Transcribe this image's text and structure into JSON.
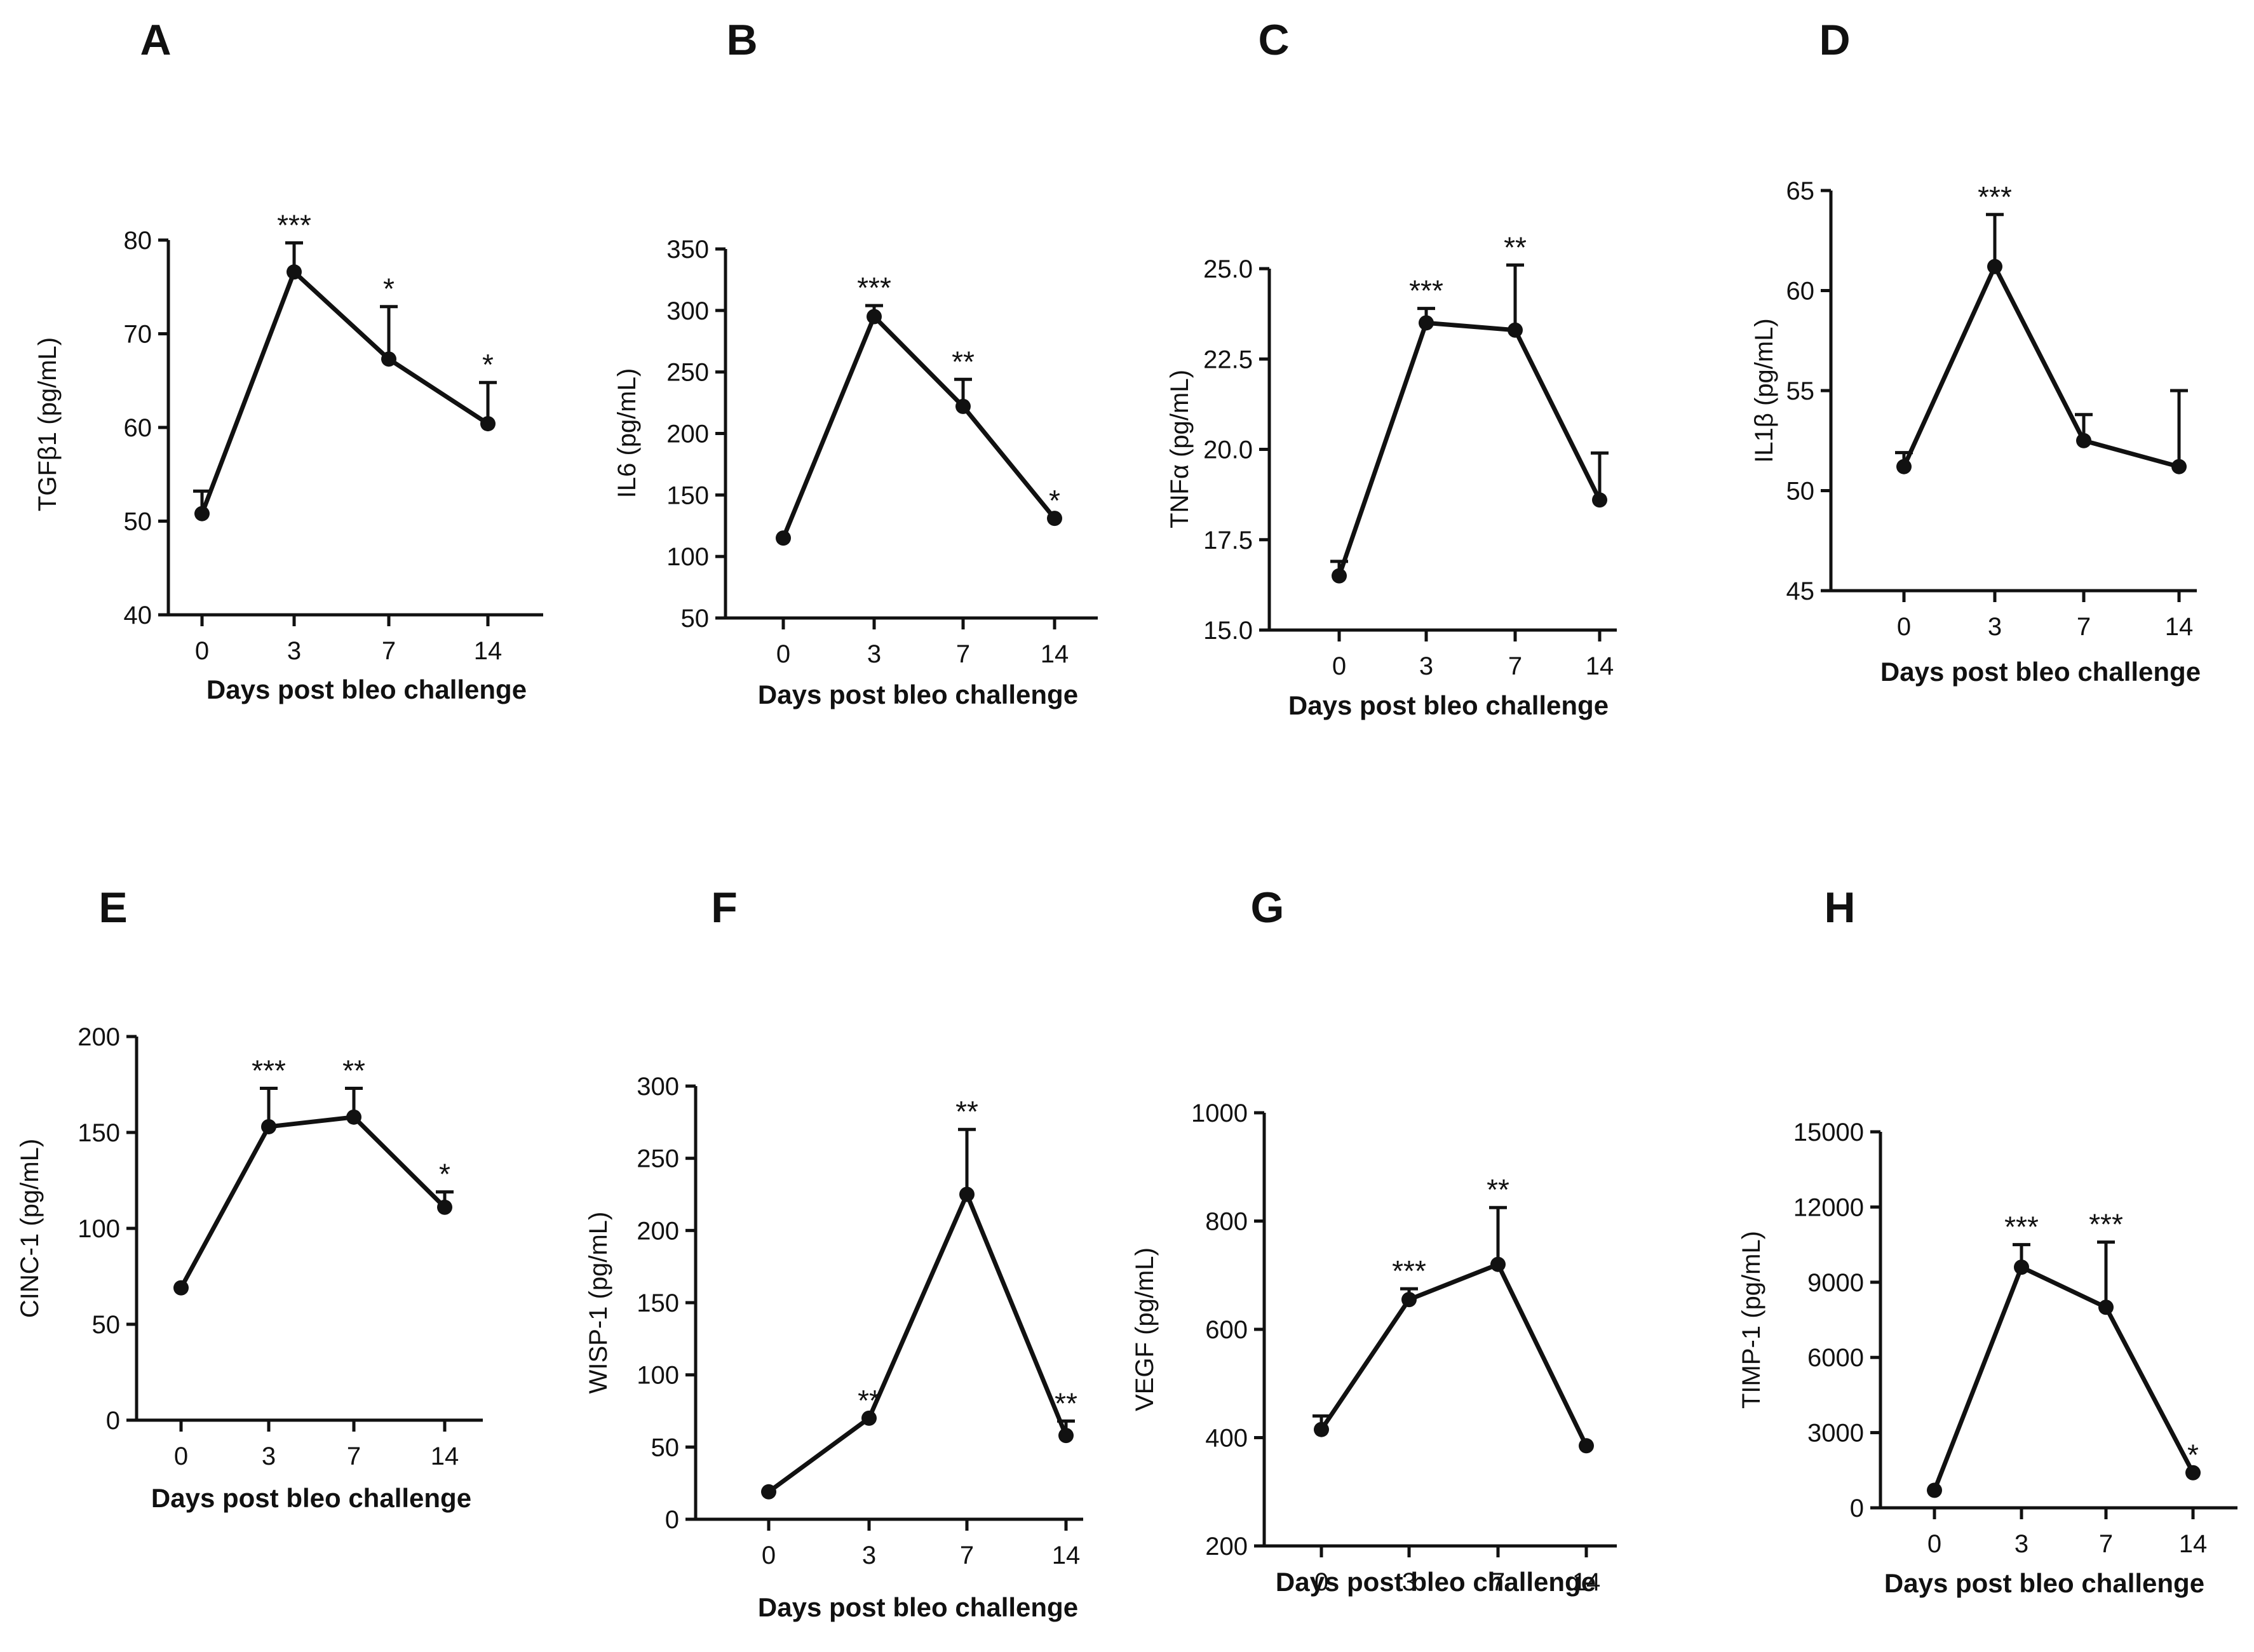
{
  "chart_data": [
    {
      "type": "line",
      "panel": "A",
      "ylabel": "TGFβ1 (pg/mL)",
      "xlabel": "Days post bleo challenge",
      "x": [
        "0",
        "3",
        "7",
        "14"
      ],
      "values": [
        50.8,
        76.6,
        67.3,
        60.4
      ],
      "error_upper": [
        53.2,
        79.7,
        72.9,
        64.8
      ],
      "significance": [
        "",
        "***",
        "*",
        "*"
      ],
      "ylim": [
        40,
        80
      ],
      "yticks": [
        40,
        50,
        60,
        70,
        80
      ],
      "ytick_labels": [
        "40",
        "50",
        "60",
        "70",
        "80"
      ]
    },
    {
      "type": "line",
      "panel": "B",
      "ylabel": "IL6 (pg/mL)",
      "xlabel": "Days post bleo challenge",
      "x": [
        "0",
        "3",
        "7",
        "14"
      ],
      "values": [
        115,
        295,
        222,
        131
      ],
      "error_upper": [
        115,
        304,
        244,
        131
      ],
      "significance": [
        "",
        "***",
        "**",
        "*"
      ],
      "ylim": [
        50,
        350
      ],
      "yticks": [
        50,
        100,
        150,
        200,
        250,
        300,
        350
      ],
      "ytick_labels": [
        "50",
        "100",
        "150",
        "200",
        "250",
        "300",
        "350"
      ]
    },
    {
      "type": "line",
      "panel": "C",
      "ylabel": "TNFα (pg/mL)",
      "xlabel": "Days post bleo challenge",
      "x": [
        "0",
        "3",
        "7",
        "14"
      ],
      "values": [
        16.5,
        23.5,
        23.3,
        18.6
      ],
      "error_upper": [
        16.9,
        23.9,
        25.1,
        19.9
      ],
      "significance": [
        "",
        "***",
        "**",
        ""
      ],
      "ylim": [
        15,
        25
      ],
      "yticks": [
        15,
        17.5,
        20,
        22.5,
        25
      ],
      "ytick_labels": [
        "15.0",
        "17.5",
        "20.0",
        "22.5",
        "25.0"
      ]
    },
    {
      "type": "line",
      "panel": "D",
      "ylabel": "IL1β (pg/mL)",
      "xlabel": "Days post bleo challenge",
      "x": [
        "0",
        "3",
        "7",
        "14"
      ],
      "values": [
        51.2,
        61.2,
        52.5,
        51.2
      ],
      "error_upper": [
        51.9,
        63.8,
        53.8,
        55.0
      ],
      "significance": [
        "",
        "***",
        "",
        ""
      ],
      "ylim": [
        45,
        65
      ],
      "yticks": [
        45,
        50,
        55,
        60,
        65
      ],
      "ytick_labels": [
        "45",
        "50",
        "55",
        "60",
        "65"
      ]
    },
    {
      "type": "line",
      "panel": "E",
      "ylabel": "CINC-1 (pg/mL)",
      "xlabel": "Days post bleo challenge",
      "x": [
        "0",
        "3",
        "7",
        "14"
      ],
      "values": [
        69,
        153,
        158,
        111
      ],
      "error_upper": [
        69,
        173,
        173,
        119
      ],
      "significance": [
        "",
        "***",
        "**",
        "*"
      ],
      "ylim": [
        0,
        200
      ],
      "yticks": [
        0,
        50,
        100,
        150,
        200
      ],
      "ytick_labels": [
        "0",
        "50",
        "100",
        "150",
        "200"
      ]
    },
    {
      "type": "line",
      "panel": "F",
      "ylabel": "WISP-1 (pg/mL)",
      "xlabel": "Days post bleo challenge",
      "x": [
        "0",
        "3",
        "7",
        "14"
      ],
      "values": [
        19,
        70,
        225,
        58
      ],
      "error_upper": [
        19,
        70,
        270,
        68
      ],
      "significance": [
        "",
        "**",
        "**",
        "**"
      ],
      "ylim": [
        0,
        300
      ],
      "yticks": [
        0,
        50,
        100,
        150,
        200,
        250,
        300
      ],
      "ytick_labels": [
        "0",
        "50",
        "100",
        "150",
        "200",
        "250",
        "300"
      ]
    },
    {
      "type": "line",
      "panel": "G",
      "ylabel": "VEGF (pg/mL)",
      "xlabel": "Days post bleo challenge",
      "x": [
        "0",
        "3",
        "7",
        "14"
      ],
      "values": [
        415,
        655,
        720,
        385
      ],
      "error_upper": [
        440,
        675,
        825,
        385
      ],
      "significance": [
        "",
        "***",
        "**",
        ""
      ],
      "ylim": [
        200,
        1000
      ],
      "yticks": [
        200,
        400,
        600,
        800,
        1000
      ],
      "ytick_labels": [
        "200",
        "400",
        "600",
        "800",
        "1000"
      ]
    },
    {
      "type": "line",
      "panel": "H",
      "ylabel": "TIMP-1 (pg/mL)",
      "xlabel": "Days post bleo challenge",
      "x": [
        "0",
        "3",
        "7",
        "14"
      ],
      "values": [
        700,
        9600,
        8000,
        1400
      ],
      "error_upper": [
        700,
        10500,
        10600,
        1400
      ],
      "significance": [
        "",
        "***",
        "***",
        "*"
      ],
      "ylim": [
        0,
        15000
      ],
      "yticks": [
        0,
        3000,
        6000,
        9000,
        12000,
        15000
      ],
      "ytick_labels": [
        "0",
        "3000",
        "6000",
        "9000",
        "12000",
        "15000"
      ]
    }
  ]
}
